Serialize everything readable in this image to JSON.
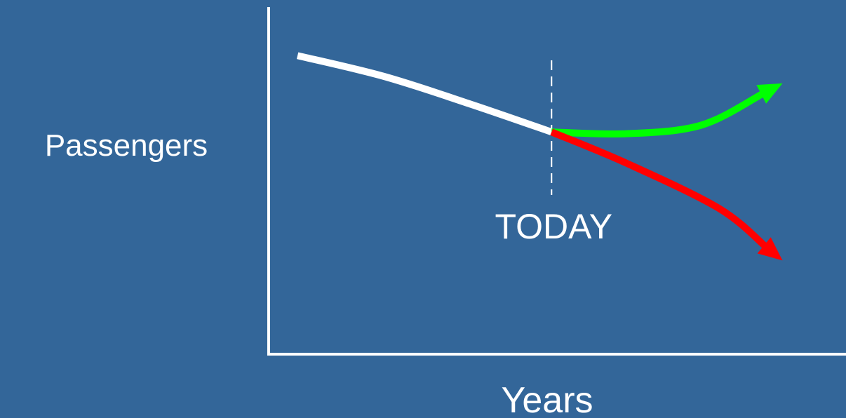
{
  "chart_data": {
    "type": "line",
    "title": "",
    "xlabel": "Years",
    "ylabel": "Passengers",
    "xlim": [
      0,
      100
    ],
    "ylim": [
      0,
      100
    ],
    "grid": false,
    "legend": "none",
    "annotation": {
      "label": "TODAY",
      "x": 49
    },
    "series": [
      {
        "color": "#ffffff",
        "arrow": false,
        "points": [
          [
            5,
            86
          ],
          [
            20,
            80
          ],
          [
            35,
            72
          ],
          [
            49,
            64
          ]
        ]
      },
      {
        "color": "#00ff00",
        "arrow": true,
        "points": [
          [
            49,
            64
          ],
          [
            62,
            63.5
          ],
          [
            75,
            66
          ],
          [
            89,
            78
          ]
        ]
      },
      {
        "color": "#ff0000",
        "arrow": true,
        "points": [
          [
            49,
            64
          ],
          [
            62,
            55
          ],
          [
            78,
            42
          ],
          [
            89,
            27
          ]
        ]
      }
    ]
  }
}
